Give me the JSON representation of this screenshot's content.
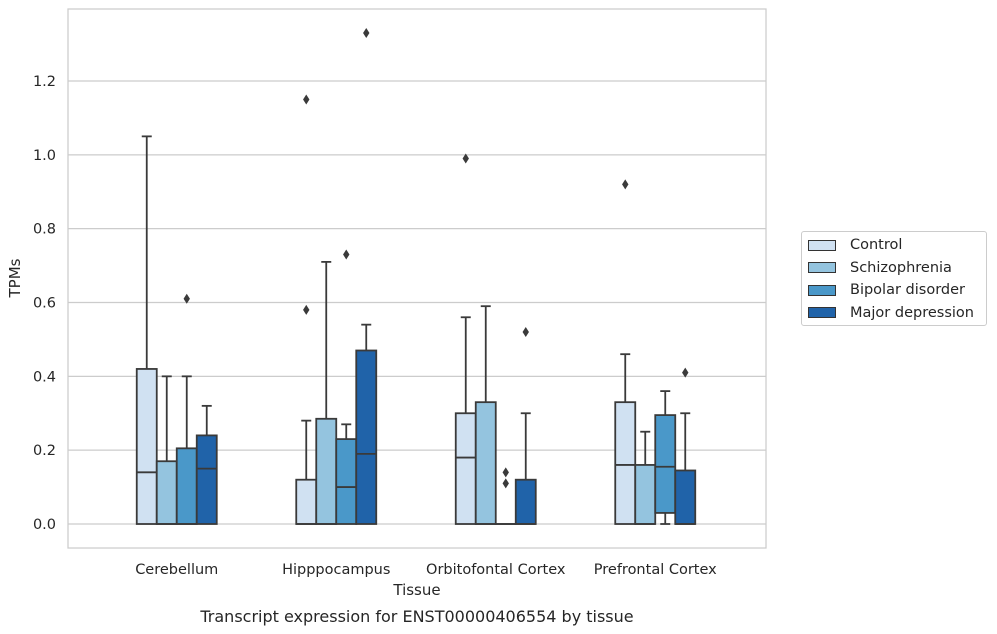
{
  "chart_data": {
    "type": "box",
    "caption": "Transcript expression for ENST00000406554 by tissue",
    "xlabel": "Tissue",
    "ylabel": "TPMs",
    "ylim": [
      -0.065,
      1.395
    ],
    "yticks": [
      0.0,
      0.2,
      0.4,
      0.6,
      0.8,
      1.0,
      1.2
    ],
    "ytick_labels": [
      "0.0",
      "0.2",
      "0.4",
      "0.6",
      "0.8",
      "1.0",
      "1.2"
    ],
    "grid": "horizontal",
    "legend_position": "right",
    "categories": [
      "Cerebellum",
      "Hipppocampus",
      "Orbitofontal Cortex",
      "Prefrontal Cortex"
    ],
    "series": [
      {
        "name": "Control",
        "color": "#d0e1f2",
        "boxes": [
          {
            "whislo": 0.0,
            "q1": 0.0,
            "med": 0.14,
            "q3": 0.42,
            "whishi": 1.05,
            "fliers": []
          },
          {
            "whislo": 0.0,
            "q1": 0.0,
            "med": 0.0,
            "q3": 0.12,
            "whishi": 0.28,
            "fliers": [
              0.58,
              1.15
            ]
          },
          {
            "whislo": 0.0,
            "q1": 0.0,
            "med": 0.18,
            "q3": 0.3,
            "whishi": 0.56,
            "fliers": [
              0.99
            ]
          },
          {
            "whislo": 0.0,
            "q1": 0.0,
            "med": 0.16,
            "q3": 0.33,
            "whishi": 0.46,
            "fliers": [
              0.92
            ]
          }
        ]
      },
      {
        "name": "Schizophrenia",
        "color": "#94c4df",
        "boxes": [
          {
            "whislo": 0.0,
            "q1": 0.0,
            "med": 0.0,
            "q3": 0.17,
            "whishi": 0.4,
            "fliers": []
          },
          {
            "whislo": 0.0,
            "q1": 0.0,
            "med": 0.0,
            "q3": 0.285,
            "whishi": 0.71,
            "fliers": []
          },
          {
            "whislo": 0.0,
            "q1": 0.0,
            "med": 0.0,
            "q3": 0.33,
            "whishi": 0.59,
            "fliers": []
          },
          {
            "whislo": 0.0,
            "q1": 0.0,
            "med": 0.0,
            "q3": 0.16,
            "whishi": 0.25,
            "fliers": []
          }
        ]
      },
      {
        "name": "Bipolar disorder",
        "color": "#4a98c9",
        "boxes": [
          {
            "whislo": 0.0,
            "q1": 0.0,
            "med": 0.0,
            "q3": 0.205,
            "whishi": 0.4,
            "fliers": [
              0.61
            ]
          },
          {
            "whislo": 0.0,
            "q1": 0.0,
            "med": 0.1,
            "q3": 0.23,
            "whishi": 0.27,
            "fliers": [
              0.73
            ]
          },
          {
            "whislo": 0.0,
            "q1": 0.0,
            "med": 0.0,
            "q3": 0.0,
            "whishi": 0.0,
            "fliers": [
              0.11,
              0.14
            ]
          },
          {
            "whislo": 0.0,
            "q1": 0.03,
            "med": 0.155,
            "q3": 0.295,
            "whishi": 0.36,
            "fliers": []
          }
        ]
      },
      {
        "name": "Major depression",
        "color": "#2063a9",
        "boxes": [
          {
            "whislo": 0.0,
            "q1": 0.0,
            "med": 0.15,
            "q3": 0.24,
            "whishi": 0.32,
            "fliers": []
          },
          {
            "whislo": 0.0,
            "q1": 0.0,
            "med": 0.19,
            "q3": 0.47,
            "whishi": 0.54,
            "fliers": [
              1.33
            ]
          },
          {
            "whislo": 0.0,
            "q1": 0.0,
            "med": 0.0,
            "q3": 0.12,
            "whishi": 0.3,
            "fliers": [
              0.52
            ]
          },
          {
            "whislo": 0.0,
            "q1": 0.0,
            "med": 0.0,
            "q3": 0.145,
            "whishi": 0.3,
            "fliers": [
              0.41
            ]
          }
        ]
      }
    ]
  }
}
